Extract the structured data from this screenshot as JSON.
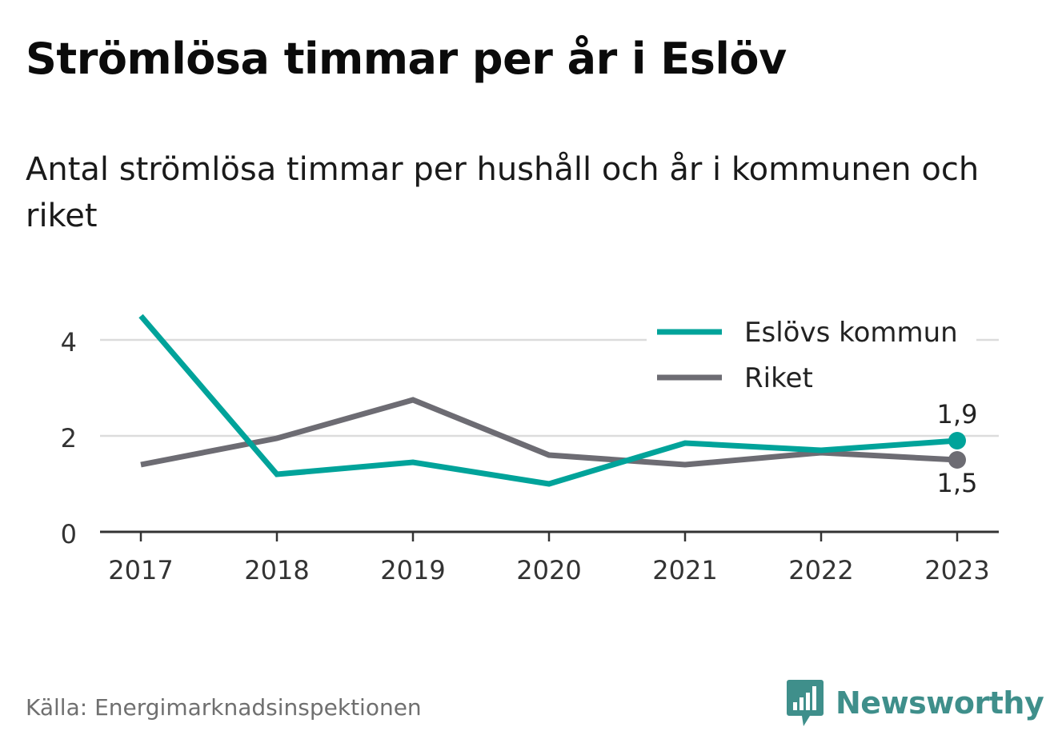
{
  "title": "Strömlösa timmar per år i Eslöv",
  "subtitle": "Antal strömlösa timmar per hushåll och år i kommunen och riket",
  "source": "Källa: Energimarknadsinspektionen",
  "brand": {
    "name": "Newsworthy",
    "icon": "newsworthy-bar-chart-icon",
    "color": "#3f8f8b"
  },
  "chart_data": {
    "type": "line",
    "x": [
      "2017",
      "2018",
      "2019",
      "2020",
      "2021",
      "2022",
      "2023"
    ],
    "series": [
      {
        "name": "Eslövs kommun",
        "color": "#00a39a",
        "values": [
          4.5,
          1.2,
          1.45,
          1.0,
          1.85,
          1.7,
          1.9
        ],
        "end_label": "1,9"
      },
      {
        "name": "Riket",
        "color": "#6d6c73",
        "values": [
          1.4,
          1.95,
          2.75,
          1.6,
          1.4,
          1.65,
          1.5
        ],
        "end_label": "1,5"
      }
    ],
    "y_ticks": [
      "0",
      "2",
      "4"
    ],
    "ylim": [
      0,
      4.7
    ],
    "grid": true,
    "legend_position": "top-right"
  }
}
